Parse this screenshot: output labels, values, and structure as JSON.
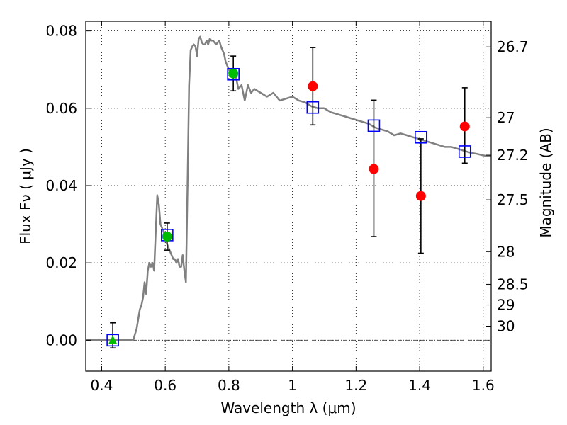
{
  "chart_data": {
    "type": "scatter",
    "xlabel": "Wavelength  λ (μm)",
    "ylabel_left": "Flux  Fν  ( μJy )",
    "ylabel_right": "Magnitude (AB)",
    "xlim": [
      0.35,
      1.625
    ],
    "ylim": [
      -0.008,
      0.0825
    ],
    "grid": true,
    "x_ticks": [
      0.4,
      0.6,
      0.8,
      1.0,
      1.2,
      1.4,
      1.6
    ],
    "x_tick_labels": [
      "0.4",
      "0.6",
      "0.8",
      "1",
      "1.2",
      "1.4",
      "1.6"
    ],
    "y_ticks": [
      0.0,
      0.02,
      0.04,
      0.06,
      0.08
    ],
    "y_tick_labels": [
      "0.00",
      "0.02",
      "0.04",
      "0.06",
      "0.08"
    ],
    "mag_ticks": [
      26.7,
      27,
      27.2,
      27.5,
      28,
      28.5,
      29,
      30
    ],
    "mag_tick_labels": [
      "26.7",
      "27",
      "27.2",
      "27.5",
      "28",
      "28.5",
      "29",
      "30"
    ],
    "template_spectrum": {
      "color": "#808080",
      "x": [
        0.35,
        0.49,
        0.5,
        0.51,
        0.52,
        0.525,
        0.53,
        0.535,
        0.54,
        0.545,
        0.55,
        0.555,
        0.56,
        0.565,
        0.57,
        0.575,
        0.58,
        0.585,
        0.59,
        0.595,
        0.6,
        0.605,
        0.61,
        0.615,
        0.62,
        0.625,
        0.63,
        0.635,
        0.64,
        0.645,
        0.65,
        0.655,
        0.66,
        0.665,
        0.67,
        0.675,
        0.68,
        0.685,
        0.69,
        0.695,
        0.7,
        0.705,
        0.71,
        0.715,
        0.72,
        0.725,
        0.73,
        0.735,
        0.74,
        0.745,
        0.75,
        0.755,
        0.76,
        0.765,
        0.77,
        0.775,
        0.78,
        0.785,
        0.79,
        0.8,
        0.81,
        0.82,
        0.83,
        0.84,
        0.85,
        0.86,
        0.87,
        0.88,
        0.9,
        0.92,
        0.94,
        0.96,
        0.98,
        1.0,
        1.02,
        1.04,
        1.06,
        1.08,
        1.1,
        1.12,
        1.14,
        1.16,
        1.18,
        1.2,
        1.22,
        1.24,
        1.26,
        1.28,
        1.3,
        1.32,
        1.34,
        1.36,
        1.38,
        1.4,
        1.42,
        1.44,
        1.46,
        1.48,
        1.5,
        1.52,
        1.54,
        1.56,
        1.58,
        1.6,
        1.625
      ],
      "y": [
        0.0,
        0.0,
        0.0002,
        0.003,
        0.008,
        0.009,
        0.011,
        0.015,
        0.012,
        0.018,
        0.02,
        0.019,
        0.02,
        0.018,
        0.028,
        0.0375,
        0.035,
        0.03,
        0.029,
        0.028,
        0.026,
        0.025,
        0.024,
        0.023,
        0.022,
        0.021,
        0.021,
        0.02,
        0.021,
        0.019,
        0.019,
        0.022,
        0.018,
        0.015,
        0.04,
        0.066,
        0.075,
        0.076,
        0.0765,
        0.076,
        0.0735,
        0.078,
        0.0785,
        0.077,
        0.0765,
        0.0765,
        0.0775,
        0.0765,
        0.078,
        0.0775,
        0.0775,
        0.077,
        0.0765,
        0.077,
        0.0775,
        0.076,
        0.075,
        0.074,
        0.072,
        0.07,
        0.068,
        0.069,
        0.065,
        0.066,
        0.062,
        0.066,
        0.064,
        0.065,
        0.064,
        0.063,
        0.064,
        0.062,
        0.0625,
        0.063,
        0.062,
        0.0615,
        0.0605,
        0.06,
        0.06,
        0.059,
        0.0585,
        0.058,
        0.0575,
        0.057,
        0.0565,
        0.056,
        0.055,
        0.0545,
        0.054,
        0.053,
        0.0535,
        0.053,
        0.0525,
        0.052,
        0.0515,
        0.051,
        0.0505,
        0.05,
        0.05,
        0.0495,
        0.049,
        0.0485,
        0.0482,
        0.0478,
        0.0475
      ]
    },
    "model_photometry": {
      "marker": "open-square",
      "color": "#0000ff",
      "x": [
        0.435,
        0.606,
        0.814,
        1.064,
        1.256,
        1.404,
        1.542
      ],
      "y": [
        0.0,
        0.0272,
        0.0688,
        0.0602,
        0.0555,
        0.0525,
        0.0488
      ]
    },
    "observed_detections": {
      "marker": "filled-circle",
      "color": "#00bb00",
      "x": [
        0.606,
        0.814
      ],
      "y": [
        0.0268,
        0.069
      ],
      "yerr_low": [
        0.0035,
        0.0045
      ],
      "yerr_high": [
        0.0035,
        0.0045
      ]
    },
    "observed_upper_limit": {
      "marker": "filled-triangle",
      "color": "#00bb00",
      "x": [
        0.435
      ],
      "y": [
        0.0
      ],
      "yerr_low": [
        0.002
      ],
      "yerr_high": [
        0.0045
      ]
    },
    "observed_low_snr": {
      "marker": "filled-circle",
      "color": "#ff0000",
      "x": [
        1.064,
        1.256,
        1.404,
        1.542
      ],
      "y": [
        0.0657,
        0.0443,
        0.0373,
        0.0553
      ],
      "yerr_low": [
        0.01,
        0.0175,
        0.0148,
        0.0095
      ],
      "yerr_high": [
        0.01,
        0.0178,
        0.0148,
        0.01
      ]
    }
  }
}
